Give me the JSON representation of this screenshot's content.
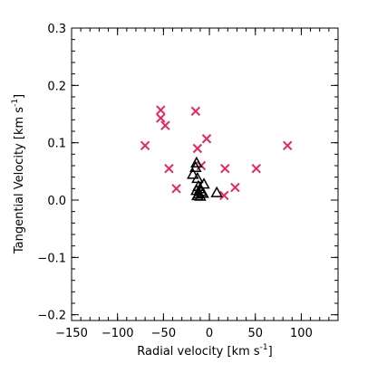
{
  "chart_data": {
    "type": "scatter",
    "title": "",
    "xlabel_main": "Radial velocity ",
    "xlabel_unit": "[km s",
    "xlabel_exp": "-1",
    "xlabel_close": "]",
    "ylabel_main": "Tangential Velocity ",
    "ylabel_unit": "[km s",
    "ylabel_exp": "-1",
    "ylabel_close": "]",
    "xlim": [
      -150,
      140
    ],
    "ylim": [
      -0.21,
      0.3
    ],
    "xticks": [
      -150,
      -100,
      -50,
      0,
      50,
      100
    ],
    "xtick_labels": [
      "−150",
      "−100",
      "−50",
      "0",
      "50",
      "100"
    ],
    "yticks": [
      -0.2,
      -0.1,
      0.0,
      0.1,
      0.2,
      0.3
    ],
    "ytick_labels": [
      "−0.2",
      "−0.1",
      "0.0",
      "0.1",
      "0.2",
      "0.3"
    ],
    "grid": false,
    "series": [
      {
        "marker": "x",
        "color": "#e8265a",
        "points": [
          {
            "x": -53,
            "y": 0.157
          },
          {
            "x": -53,
            "y": 0.143
          },
          {
            "x": -48,
            "y": 0.13
          },
          {
            "x": -15,
            "y": 0.155
          },
          {
            "x": -70,
            "y": 0.095
          },
          {
            "x": -3,
            "y": 0.107
          },
          {
            "x": -13,
            "y": 0.09
          },
          {
            "x": 85,
            "y": 0.095
          },
          {
            "x": -44,
            "y": 0.055
          },
          {
            "x": -9,
            "y": 0.06
          },
          {
            "x": 17,
            "y": 0.055
          },
          {
            "x": 51,
            "y": 0.055
          },
          {
            "x": -36,
            "y": 0.02
          },
          {
            "x": 28,
            "y": 0.022
          },
          {
            "x": 16,
            "y": 0.008
          }
        ]
      },
      {
        "marker": "triangle",
        "color": "#000000",
        "points": [
          {
            "x": -14,
            "y": 0.065
          },
          {
            "x": -15,
            "y": 0.057
          },
          {
            "x": -18,
            "y": 0.045
          },
          {
            "x": -13,
            "y": 0.038
          },
          {
            "x": -6,
            "y": 0.028
          },
          {
            "x": -12,
            "y": 0.024
          },
          {
            "x": -10,
            "y": 0.02
          },
          {
            "x": -14,
            "y": 0.017
          },
          {
            "x": -9,
            "y": 0.015
          },
          {
            "x": -12,
            "y": 0.011
          },
          {
            "x": -7,
            "y": 0.012
          },
          {
            "x": -13,
            "y": 0.008
          },
          {
            "x": -10,
            "y": 0.007
          },
          {
            "x": 8,
            "y": 0.013
          }
        ]
      }
    ]
  }
}
